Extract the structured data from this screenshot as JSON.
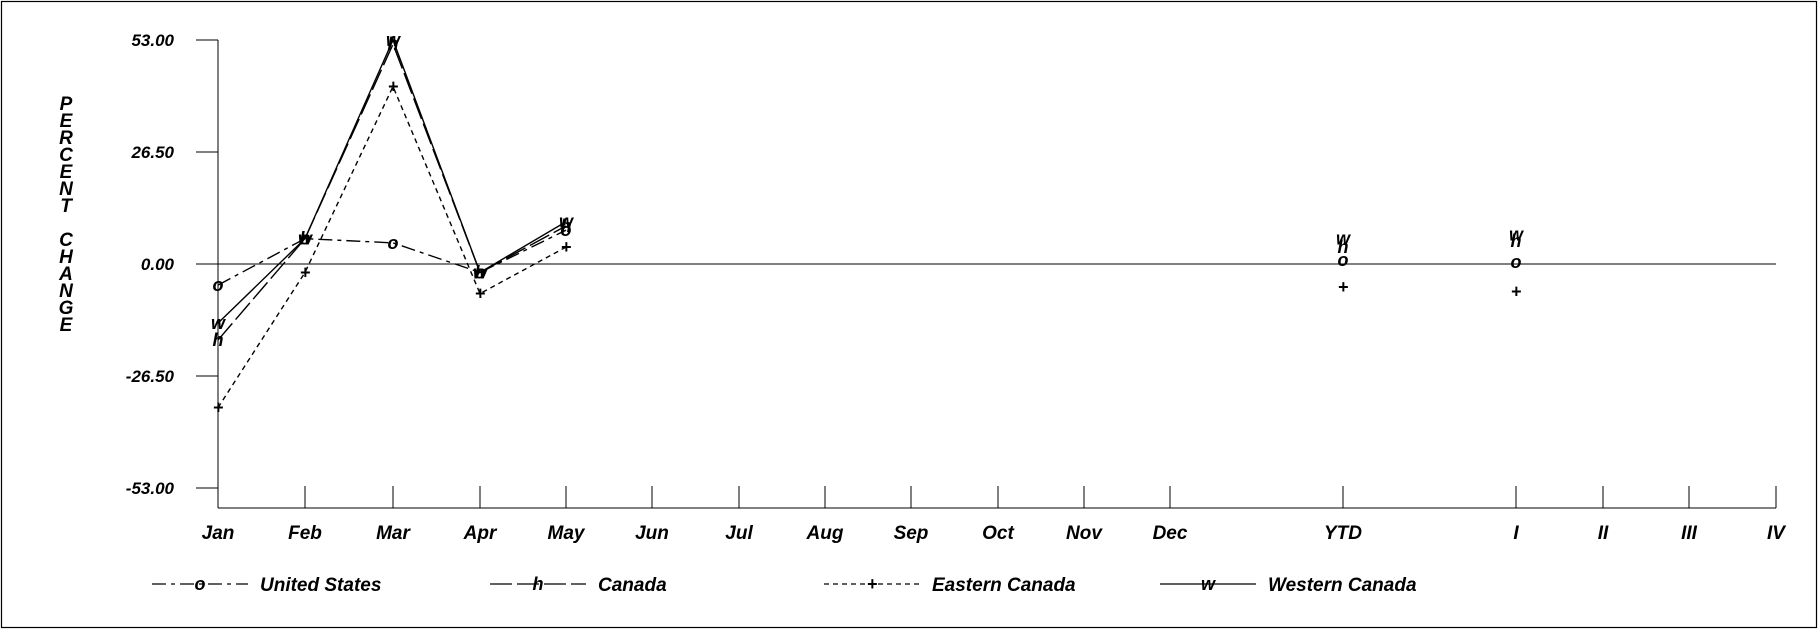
{
  "chart_data": {
    "type": "line",
    "title": "",
    "ylabel": "PERCENT CHANGE",
    "xlabel": "",
    "ylim": [
      -53,
      53
    ],
    "y_ticks": [
      "53.00",
      "26.50",
      "0.00",
      "-26.50",
      "-53.00"
    ],
    "y_tick_values": [
      53,
      26.5,
      0,
      -26.5,
      -53
    ],
    "categories": [
      "Jan",
      "Feb",
      "Mar",
      "Apr",
      "May",
      "Jun",
      "Jul",
      "Aug",
      "Sep",
      "Oct",
      "Nov",
      "Dec",
      "YTD",
      "I",
      "II",
      "III",
      "IV"
    ],
    "legend_position": "bottom",
    "grid": false,
    "series": [
      {
        "name": "United States",
        "marker": "o",
        "line_style": "dash-dot",
        "monthly": [
          -5,
          6,
          5,
          -2,
          8
        ],
        "points": [
          {
            "x": "YTD",
            "y": 1
          },
          {
            "x": "I",
            "y": 0.5
          }
        ]
      },
      {
        "name": "Canada",
        "marker": "h",
        "line_style": "long-dash",
        "monthly": [
          -18,
          6,
          52,
          -2,
          9
        ],
        "points": [
          {
            "x": "YTD",
            "y": 4
          },
          {
            "x": "I",
            "y": 5.5
          }
        ]
      },
      {
        "name": "Eastern Canada",
        "marker": "+",
        "line_style": "short-dash",
        "monthly": [
          -34,
          -2,
          42,
          -7,
          4
        ],
        "points": [
          {
            "x": "YTD",
            "y": -5.5
          },
          {
            "x": "I",
            "y": -6.5
          }
        ]
      },
      {
        "name": "Western Canada",
        "marker": "w",
        "line_style": "solid",
        "monthly": [
          -14,
          6,
          53,
          -2,
          10
        ],
        "points": [
          {
            "x": "YTD",
            "y": 6
          },
          {
            "x": "I",
            "y": 7
          }
        ]
      }
    ]
  }
}
